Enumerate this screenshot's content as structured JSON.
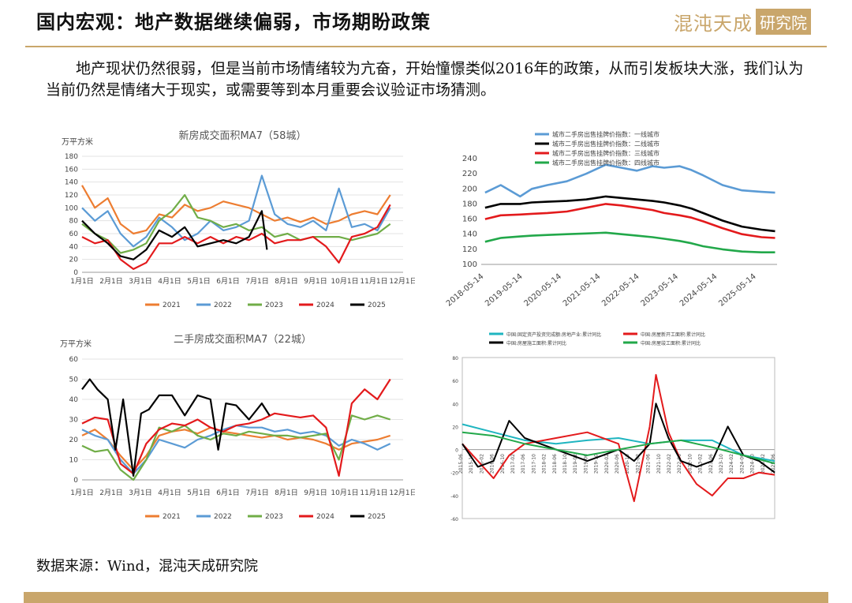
{
  "header": {
    "title": "国内宏观：地产数据继续偏弱，市场期盼政策",
    "logo_main": "混沌天成",
    "logo_box": "研究院"
  },
  "body": {
    "paragraph": "地产现状仍然很弱，但是当前市场情绪较为亢奋，开始憧憬类似2016年的政策，从而引发板块大涨，我们认为当前仍然是情绪大于现实，或需要等到本月重要会议验证市场猜测。"
  },
  "footer": {
    "source": "数据来源：Wind，混沌天成研究院"
  },
  "colors": {
    "gold": "#c9a66b"
  },
  "chart_data": [
    {
      "type": "line",
      "title": "新房成交面积MA7（58城）",
      "ylabel": "万平方米",
      "x_ticks": [
        "1月1日",
        "2月1日",
        "3月1日",
        "4月1日",
        "5月1日",
        "6月1日",
        "7月1日",
        "8月1日",
        "9月1日",
        "10月1日",
        "11月1日",
        "12月1日"
      ],
      "ylim": [
        0,
        180
      ],
      "y_ticks": [
        0,
        20,
        40,
        60,
        80,
        100,
        120,
        140,
        160,
        180
      ],
      "series": [
        {
          "name": "2021",
          "color": "#ed7d31",
          "x": [
            0,
            0.5,
            1,
            1.5,
            2,
            2.5,
            3,
            3.5,
            4,
            4.5,
            5,
            5.5,
            6,
            6.5,
            7,
            7.5,
            8,
            8.5,
            9,
            9.5,
            10,
            10.5,
            11,
            11.5,
            12
          ],
          "values": [
            135,
            100,
            115,
            75,
            60,
            65,
            90,
            85,
            105,
            95,
            100,
            110,
            105,
            100,
            90,
            80,
            85,
            78,
            85,
            75,
            80,
            90,
            95,
            90,
            120
          ]
        },
        {
          "name": "2022",
          "color": "#5b9bd5",
          "x": [
            0,
            0.5,
            1,
            1.5,
            2,
            2.5,
            3,
            3.5,
            4,
            4.5,
            5,
            5.5,
            6,
            6.5,
            7,
            7.5,
            8,
            8.5,
            9,
            9.5,
            10,
            10.5,
            11,
            11.5,
            12
          ],
          "values": [
            100,
            80,
            95,
            60,
            40,
            55,
            85,
            70,
            50,
            60,
            80,
            65,
            70,
            80,
            150,
            90,
            75,
            70,
            80,
            65,
            130,
            70,
            75,
            65,
            100
          ]
        },
        {
          "name": "2023",
          "color": "#70ad47",
          "x": [
            0,
            0.5,
            1,
            1.5,
            2,
            2.5,
            3,
            3.5,
            4,
            4.5,
            5,
            5.5,
            6,
            6.5,
            7,
            7.5,
            8,
            8.5,
            9,
            9.5,
            10,
            10.5,
            11,
            11.5,
            12
          ],
          "values": [
            75,
            60,
            50,
            30,
            35,
            45,
            80,
            95,
            120,
            85,
            80,
            70,
            75,
            65,
            70,
            55,
            60,
            50,
            55,
            55,
            55,
            50,
            55,
            60,
            75
          ]
        },
        {
          "name": "2024",
          "color": "#e31a1c",
          "x": [
            0,
            0.5,
            1,
            1.5,
            2,
            2.5,
            3,
            3.5,
            4,
            4.5,
            5,
            5.5,
            6,
            6.5,
            7,
            7.5,
            8,
            8.5,
            9,
            9.5,
            10,
            10.5,
            11,
            11.5,
            12
          ],
          "values": [
            55,
            45,
            50,
            20,
            5,
            15,
            45,
            45,
            55,
            45,
            55,
            45,
            55,
            50,
            60,
            45,
            50,
            50,
            55,
            40,
            15,
            55,
            60,
            70,
            105
          ]
        },
        {
          "name": "2025",
          "color": "#000000",
          "x": [
            0,
            0.5,
            1,
            1.5,
            2,
            2.5,
            3,
            3.5,
            4,
            4.5,
            5,
            5.5,
            6,
            6.5,
            7,
            7.2
          ],
          "values": [
            80,
            60,
            45,
            25,
            20,
            35,
            65,
            55,
            70,
            40,
            45,
            50,
            45,
            55,
            95,
            35
          ]
        }
      ]
    },
    {
      "type": "line",
      "title": "二手房成交面积MA7（22城）",
      "ylabel": "万平方米",
      "x_ticks": [
        "1月1日",
        "2月1日",
        "3月1日",
        "4月1日",
        "5月1日",
        "6月1日",
        "7月1日",
        "8月1日",
        "9月1日",
        "10月1日",
        "11月1日",
        "12月1日"
      ],
      "ylim": [
        0,
        60
      ],
      "y_ticks": [
        0,
        10,
        20,
        30,
        40,
        50,
        60
      ],
      "series": [
        {
          "name": "2021",
          "color": "#ed7d31",
          "x": [
            0,
            0.5,
            1,
            1.5,
            2,
            2.5,
            3,
            3.5,
            4,
            4.5,
            5,
            5.5,
            6,
            6.5,
            7,
            7.5,
            8,
            8.5,
            9,
            9.5,
            10,
            10.5,
            11,
            11.5,
            12
          ],
          "values": [
            22,
            25,
            20,
            12,
            5,
            12,
            22,
            24,
            25,
            23,
            26,
            24,
            23,
            22,
            21,
            22,
            20,
            21,
            20,
            18,
            15,
            18,
            19,
            20,
            22
          ]
        },
        {
          "name": "2022",
          "color": "#5b9bd5",
          "x": [
            0,
            0.5,
            1,
            1.5,
            2,
            2.5,
            3,
            3.5,
            4,
            4.5,
            5,
            5.5,
            6,
            6.5,
            7,
            7.5,
            8,
            8.5,
            9,
            9.5,
            10,
            10.5,
            11,
            11.5,
            12
          ],
          "values": [
            25,
            22,
            20,
            10,
            3,
            10,
            20,
            18,
            16,
            20,
            22,
            25,
            27,
            26,
            26,
            24,
            25,
            23,
            24,
            22,
            17,
            20,
            18,
            15,
            18
          ]
        },
        {
          "name": "2023",
          "color": "#70ad47",
          "x": [
            0,
            0.5,
            1,
            1.5,
            2,
            2.5,
            3,
            3.5,
            4,
            4.5,
            5,
            5.5,
            6,
            6.5,
            7,
            7.5,
            8,
            8.5,
            9,
            9.5,
            10,
            10.5,
            11,
            11.5,
            12
          ],
          "values": [
            17,
            14,
            15,
            5,
            0,
            10,
            26,
            24,
            27,
            22,
            20,
            23,
            22,
            24,
            23,
            22,
            22,
            21,
            22,
            23,
            10,
            32,
            30,
            32,
            30
          ]
        },
        {
          "name": "2024",
          "color": "#e31a1c",
          "x": [
            0,
            0.5,
            1,
            1.5,
            2,
            2.5,
            3,
            3.5,
            4,
            4.5,
            5,
            5.5,
            6,
            6.5,
            7,
            7.5,
            8,
            8.5,
            9,
            9.5,
            10,
            10.5,
            11,
            11.5,
            12
          ],
          "values": [
            28,
            31,
            30,
            8,
            3,
            18,
            25,
            28,
            27,
            30,
            26,
            24,
            27,
            28,
            30,
            33,
            32,
            31,
            32,
            26,
            2,
            38,
            45,
            40,
            50
          ]
        },
        {
          "name": "2025",
          "color": "#000000",
          "x": [
            0,
            0.3,
            0.6,
            1,
            1.3,
            1.6,
            2,
            2.3,
            2.6,
            3,
            3.5,
            4,
            4.5,
            5,
            5.3,
            5.6,
            6,
            6.5,
            7,
            7.3
          ],
          "values": [
            45,
            50,
            45,
            40,
            15,
            40,
            2,
            33,
            35,
            42,
            42,
            32,
            42,
            40,
            15,
            38,
            37,
            30,
            38,
            32
          ]
        }
      ]
    },
    {
      "type": "line",
      "title": "",
      "x_ticks": [
        "2018-05-14",
        "2019-05-14",
        "2020-05-14",
        "2021-05-14",
        "2022-05-14",
        "2023-05-14",
        "2024-05-14",
        "2025-05-14"
      ],
      "ylim": [
        100,
        240
      ],
      "y_ticks": [
        100,
        120,
        140,
        160,
        180,
        200,
        220,
        240
      ],
      "series": [
        {
          "name": "城市二手房出售挂牌价指数：一线城市",
          "color": "#5b9bd5",
          "x": [
            2018.4,
            2018.8,
            2019.3,
            2019.6,
            2020.0,
            2020.5,
            2021.0,
            2021.5,
            2021.9,
            2022.3,
            2022.7,
            2023.0,
            2023.4,
            2023.7,
            2024.0,
            2024.5,
            2025.0,
            2025.5,
            2025.85
          ],
          "values": [
            195,
            205,
            190,
            200,
            205,
            210,
            220,
            232,
            228,
            224,
            230,
            228,
            230,
            225,
            218,
            205,
            198,
            196,
            195
          ]
        },
        {
          "name": "城市二手房出售挂牌价指数：二线城市",
          "color": "#000000",
          "x": [
            2018.4,
            2018.8,
            2019.3,
            2019.6,
            2020.0,
            2020.5,
            2021.0,
            2021.5,
            2021.9,
            2022.3,
            2022.7,
            2023.0,
            2023.4,
            2023.7,
            2024.0,
            2024.5,
            2025.0,
            2025.5,
            2025.85
          ],
          "values": [
            175,
            180,
            180,
            182,
            183,
            184,
            186,
            190,
            188,
            186,
            184,
            182,
            178,
            174,
            168,
            158,
            150,
            146,
            144
          ]
        },
        {
          "name": "城市二手房出售挂牌价指数：三线城市",
          "color": "#e31a1c",
          "x": [
            2018.4,
            2018.8,
            2019.3,
            2019.6,
            2020.0,
            2020.5,
            2021.0,
            2021.5,
            2021.9,
            2022.3,
            2022.7,
            2023.0,
            2023.4,
            2023.7,
            2024.0,
            2024.5,
            2025.0,
            2025.5,
            2025.85
          ],
          "values": [
            160,
            165,
            166,
            167,
            168,
            170,
            175,
            180,
            178,
            175,
            172,
            168,
            165,
            162,
            157,
            148,
            140,
            136,
            135
          ]
        },
        {
          "name": "城市二手房出售挂牌价指数：四线城市",
          "color": "#22a84a",
          "x": [
            2018.4,
            2018.8,
            2019.3,
            2019.6,
            2020.0,
            2020.5,
            2021.0,
            2021.5,
            2021.9,
            2022.3,
            2022.7,
            2023.0,
            2023.4,
            2023.7,
            2024.0,
            2024.5,
            2025.0,
            2025.5,
            2025.85
          ],
          "values": [
            130,
            135,
            137,
            138,
            139,
            140,
            141,
            142,
            140,
            138,
            136,
            134,
            131,
            128,
            124,
            120,
            117,
            116,
            116
          ]
        }
      ]
    },
    {
      "type": "line",
      "title": "",
      "x_ticks": [
        "2015-06",
        "2015-10",
        "2016-02",
        "2016-06",
        "2016-10",
        "2017-02",
        "2017-06",
        "2017-10",
        "2018-02",
        "2018-06",
        "2018-10",
        "2019-02",
        "2019-06",
        "2019-10",
        "2020-02",
        "2020-06",
        "2020-10",
        "2021-02",
        "2021-06",
        "2021-10",
        "2022-02",
        "2022-06",
        "2022-10",
        "2023-02",
        "2023-06",
        "2023-10",
        "2024-02",
        "2024-06",
        "2024-10",
        "2025-02",
        "2025-06"
      ],
      "ylim": [
        -60,
        80
      ],
      "y_ticks": [
        -60,
        -40,
        -20,
        0,
        20,
        40,
        60,
        80
      ],
      "series": [
        {
          "name": "中国:固定资产投资完成额:房地产业:累计同比",
          "color": "#1fb5c0",
          "x": [
            0,
            0.1,
            0.2,
            0.3,
            0.4,
            0.5,
            0.6,
            0.7,
            0.8,
            0.9,
            1
          ],
          "values": [
            22,
            15,
            8,
            5,
            8,
            10,
            5,
            8,
            8,
            -5,
            -10
          ]
        },
        {
          "name": "中国:房屋新开工面积:累计同比",
          "color": "#e31a1c",
          "x": [
            0,
            0.05,
            0.1,
            0.15,
            0.2,
            0.3,
            0.4,
            0.5,
            0.55,
            0.6,
            0.62,
            0.66,
            0.7,
            0.75,
            0.8,
            0.85,
            0.9,
            0.95,
            1
          ],
          "values": [
            5,
            -10,
            -25,
            -5,
            5,
            10,
            15,
            5,
            -45,
            20,
            65,
            15,
            -10,
            -30,
            -40,
            -25,
            -25,
            -20,
            -22
          ]
        },
        {
          "name": "中国:房屋施工面积:累计同比",
          "color": "#000000",
          "x": [
            0,
            0.05,
            0.1,
            0.15,
            0.2,
            0.3,
            0.4,
            0.5,
            0.55,
            0.6,
            0.62,
            0.66,
            0.7,
            0.75,
            0.8,
            0.85,
            0.9,
            0.95,
            1
          ],
          "values": [
            5,
            -15,
            -10,
            25,
            10,
            0,
            -10,
            0,
            -10,
            5,
            40,
            10,
            -10,
            -15,
            -10,
            20,
            -5,
            -10,
            -20
          ]
        },
        {
          "name": "中国:房屋竣工面积:累计同比",
          "color": "#22a84a",
          "x": [
            0,
            0.1,
            0.2,
            0.3,
            0.4,
            0.5,
            0.6,
            0.7,
            0.8,
            0.9,
            1
          ],
          "values": [
            15,
            12,
            5,
            0,
            -5,
            0,
            5,
            8,
            2,
            -5,
            -12
          ]
        }
      ]
    }
  ]
}
